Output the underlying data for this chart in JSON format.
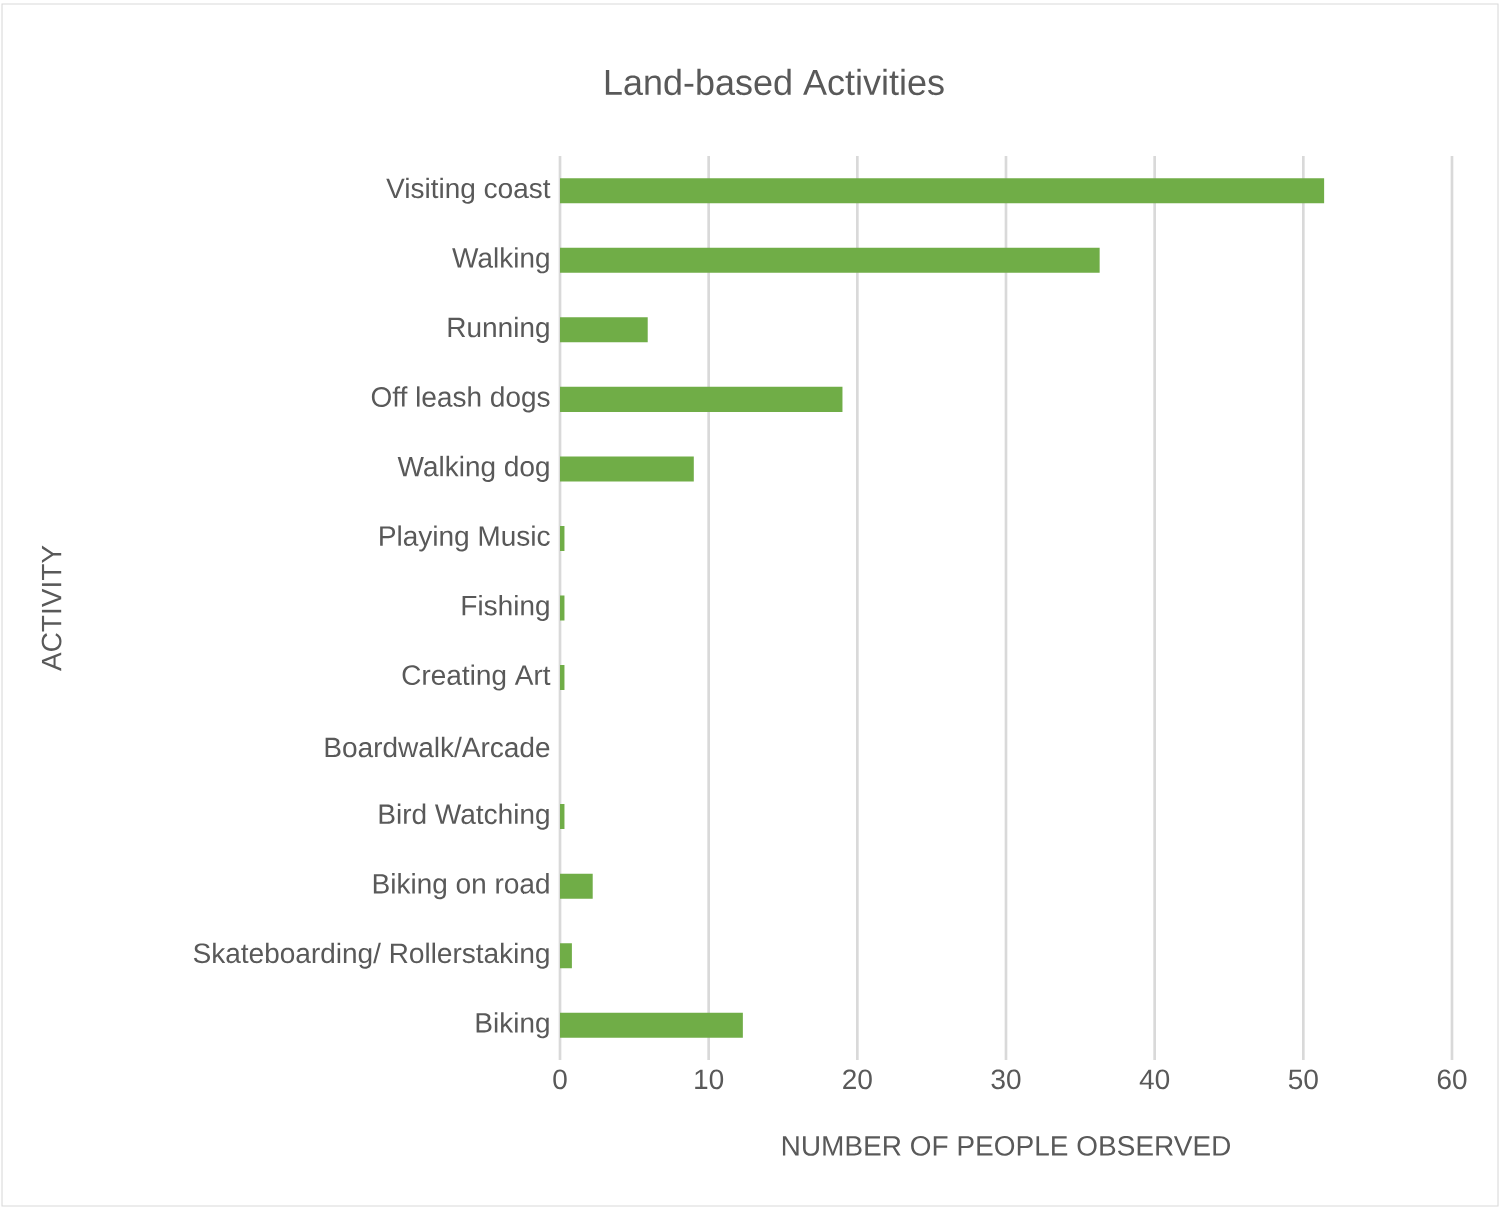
{
  "chart_data": {
    "type": "bar",
    "orientation": "horizontal",
    "title": "Land-based Activities",
    "xlabel": "NUMBER OF PEOPLE OBSERVED",
    "ylabel": "ACTIVITY",
    "categories": [
      "Visiting coast",
      "Walking",
      "Running",
      "Off leash dogs",
      "Walking dog",
      "Playing Music",
      "Fishing",
      "Creating Art",
      "Boardwalk/Arcade",
      "Bird Watching",
      "Biking on road",
      "Skateboarding/ Rollerstaking",
      "Biking"
    ],
    "values": [
      51.4,
      36.3,
      5.9,
      19,
      9,
      0.3,
      0.3,
      0.3,
      0,
      0.3,
      2.2,
      0.8,
      12.3
    ],
    "color": "#70ad47",
    "xlim": [
      0,
      60
    ],
    "xticks": [
      0,
      10,
      20,
      30,
      40,
      50,
      60
    ],
    "grid": "x"
  }
}
